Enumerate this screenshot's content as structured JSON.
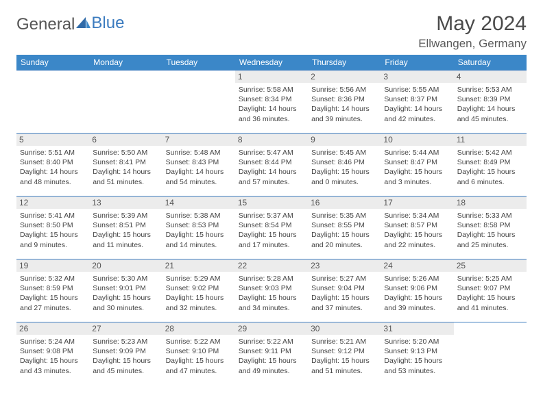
{
  "logo": {
    "part1": "General",
    "part2": "Blue"
  },
  "title": "May 2024",
  "location": "Ellwangen, Germany",
  "colors": {
    "header_bg": "#3b87c8",
    "header_text": "#ffffff",
    "border": "#3b7bbf",
    "daynum_bg": "#ececec",
    "text": "#444444"
  },
  "weekdays": [
    "Sunday",
    "Monday",
    "Tuesday",
    "Wednesday",
    "Thursday",
    "Friday",
    "Saturday"
  ],
  "weeks": [
    [
      {
        "n": "",
        "sr": "",
        "ss": "",
        "dl": ""
      },
      {
        "n": "",
        "sr": "",
        "ss": "",
        "dl": ""
      },
      {
        "n": "",
        "sr": "",
        "ss": "",
        "dl": ""
      },
      {
        "n": "1",
        "sr": "Sunrise: 5:58 AM",
        "ss": "Sunset: 8:34 PM",
        "dl": "Daylight: 14 hours and 36 minutes."
      },
      {
        "n": "2",
        "sr": "Sunrise: 5:56 AM",
        "ss": "Sunset: 8:36 PM",
        "dl": "Daylight: 14 hours and 39 minutes."
      },
      {
        "n": "3",
        "sr": "Sunrise: 5:55 AM",
        "ss": "Sunset: 8:37 PM",
        "dl": "Daylight: 14 hours and 42 minutes."
      },
      {
        "n": "4",
        "sr": "Sunrise: 5:53 AM",
        "ss": "Sunset: 8:39 PM",
        "dl": "Daylight: 14 hours and 45 minutes."
      }
    ],
    [
      {
        "n": "5",
        "sr": "Sunrise: 5:51 AM",
        "ss": "Sunset: 8:40 PM",
        "dl": "Daylight: 14 hours and 48 minutes."
      },
      {
        "n": "6",
        "sr": "Sunrise: 5:50 AM",
        "ss": "Sunset: 8:41 PM",
        "dl": "Daylight: 14 hours and 51 minutes."
      },
      {
        "n": "7",
        "sr": "Sunrise: 5:48 AM",
        "ss": "Sunset: 8:43 PM",
        "dl": "Daylight: 14 hours and 54 minutes."
      },
      {
        "n": "8",
        "sr": "Sunrise: 5:47 AM",
        "ss": "Sunset: 8:44 PM",
        "dl": "Daylight: 14 hours and 57 minutes."
      },
      {
        "n": "9",
        "sr": "Sunrise: 5:45 AM",
        "ss": "Sunset: 8:46 PM",
        "dl": "Daylight: 15 hours and 0 minutes."
      },
      {
        "n": "10",
        "sr": "Sunrise: 5:44 AM",
        "ss": "Sunset: 8:47 PM",
        "dl": "Daylight: 15 hours and 3 minutes."
      },
      {
        "n": "11",
        "sr": "Sunrise: 5:42 AM",
        "ss": "Sunset: 8:49 PM",
        "dl": "Daylight: 15 hours and 6 minutes."
      }
    ],
    [
      {
        "n": "12",
        "sr": "Sunrise: 5:41 AM",
        "ss": "Sunset: 8:50 PM",
        "dl": "Daylight: 15 hours and 9 minutes."
      },
      {
        "n": "13",
        "sr": "Sunrise: 5:39 AM",
        "ss": "Sunset: 8:51 PM",
        "dl": "Daylight: 15 hours and 11 minutes."
      },
      {
        "n": "14",
        "sr": "Sunrise: 5:38 AM",
        "ss": "Sunset: 8:53 PM",
        "dl": "Daylight: 15 hours and 14 minutes."
      },
      {
        "n": "15",
        "sr": "Sunrise: 5:37 AM",
        "ss": "Sunset: 8:54 PM",
        "dl": "Daylight: 15 hours and 17 minutes."
      },
      {
        "n": "16",
        "sr": "Sunrise: 5:35 AM",
        "ss": "Sunset: 8:55 PM",
        "dl": "Daylight: 15 hours and 20 minutes."
      },
      {
        "n": "17",
        "sr": "Sunrise: 5:34 AM",
        "ss": "Sunset: 8:57 PM",
        "dl": "Daylight: 15 hours and 22 minutes."
      },
      {
        "n": "18",
        "sr": "Sunrise: 5:33 AM",
        "ss": "Sunset: 8:58 PM",
        "dl": "Daylight: 15 hours and 25 minutes."
      }
    ],
    [
      {
        "n": "19",
        "sr": "Sunrise: 5:32 AM",
        "ss": "Sunset: 8:59 PM",
        "dl": "Daylight: 15 hours and 27 minutes."
      },
      {
        "n": "20",
        "sr": "Sunrise: 5:30 AM",
        "ss": "Sunset: 9:01 PM",
        "dl": "Daylight: 15 hours and 30 minutes."
      },
      {
        "n": "21",
        "sr": "Sunrise: 5:29 AM",
        "ss": "Sunset: 9:02 PM",
        "dl": "Daylight: 15 hours and 32 minutes."
      },
      {
        "n": "22",
        "sr": "Sunrise: 5:28 AM",
        "ss": "Sunset: 9:03 PM",
        "dl": "Daylight: 15 hours and 34 minutes."
      },
      {
        "n": "23",
        "sr": "Sunrise: 5:27 AM",
        "ss": "Sunset: 9:04 PM",
        "dl": "Daylight: 15 hours and 37 minutes."
      },
      {
        "n": "24",
        "sr": "Sunrise: 5:26 AM",
        "ss": "Sunset: 9:06 PM",
        "dl": "Daylight: 15 hours and 39 minutes."
      },
      {
        "n": "25",
        "sr": "Sunrise: 5:25 AM",
        "ss": "Sunset: 9:07 PM",
        "dl": "Daylight: 15 hours and 41 minutes."
      }
    ],
    [
      {
        "n": "26",
        "sr": "Sunrise: 5:24 AM",
        "ss": "Sunset: 9:08 PM",
        "dl": "Daylight: 15 hours and 43 minutes."
      },
      {
        "n": "27",
        "sr": "Sunrise: 5:23 AM",
        "ss": "Sunset: 9:09 PM",
        "dl": "Daylight: 15 hours and 45 minutes."
      },
      {
        "n": "28",
        "sr": "Sunrise: 5:22 AM",
        "ss": "Sunset: 9:10 PM",
        "dl": "Daylight: 15 hours and 47 minutes."
      },
      {
        "n": "29",
        "sr": "Sunrise: 5:22 AM",
        "ss": "Sunset: 9:11 PM",
        "dl": "Daylight: 15 hours and 49 minutes."
      },
      {
        "n": "30",
        "sr": "Sunrise: 5:21 AM",
        "ss": "Sunset: 9:12 PM",
        "dl": "Daylight: 15 hours and 51 minutes."
      },
      {
        "n": "31",
        "sr": "Sunrise: 5:20 AM",
        "ss": "Sunset: 9:13 PM",
        "dl": "Daylight: 15 hours and 53 minutes."
      },
      {
        "n": "",
        "sr": "",
        "ss": "",
        "dl": ""
      }
    ]
  ]
}
